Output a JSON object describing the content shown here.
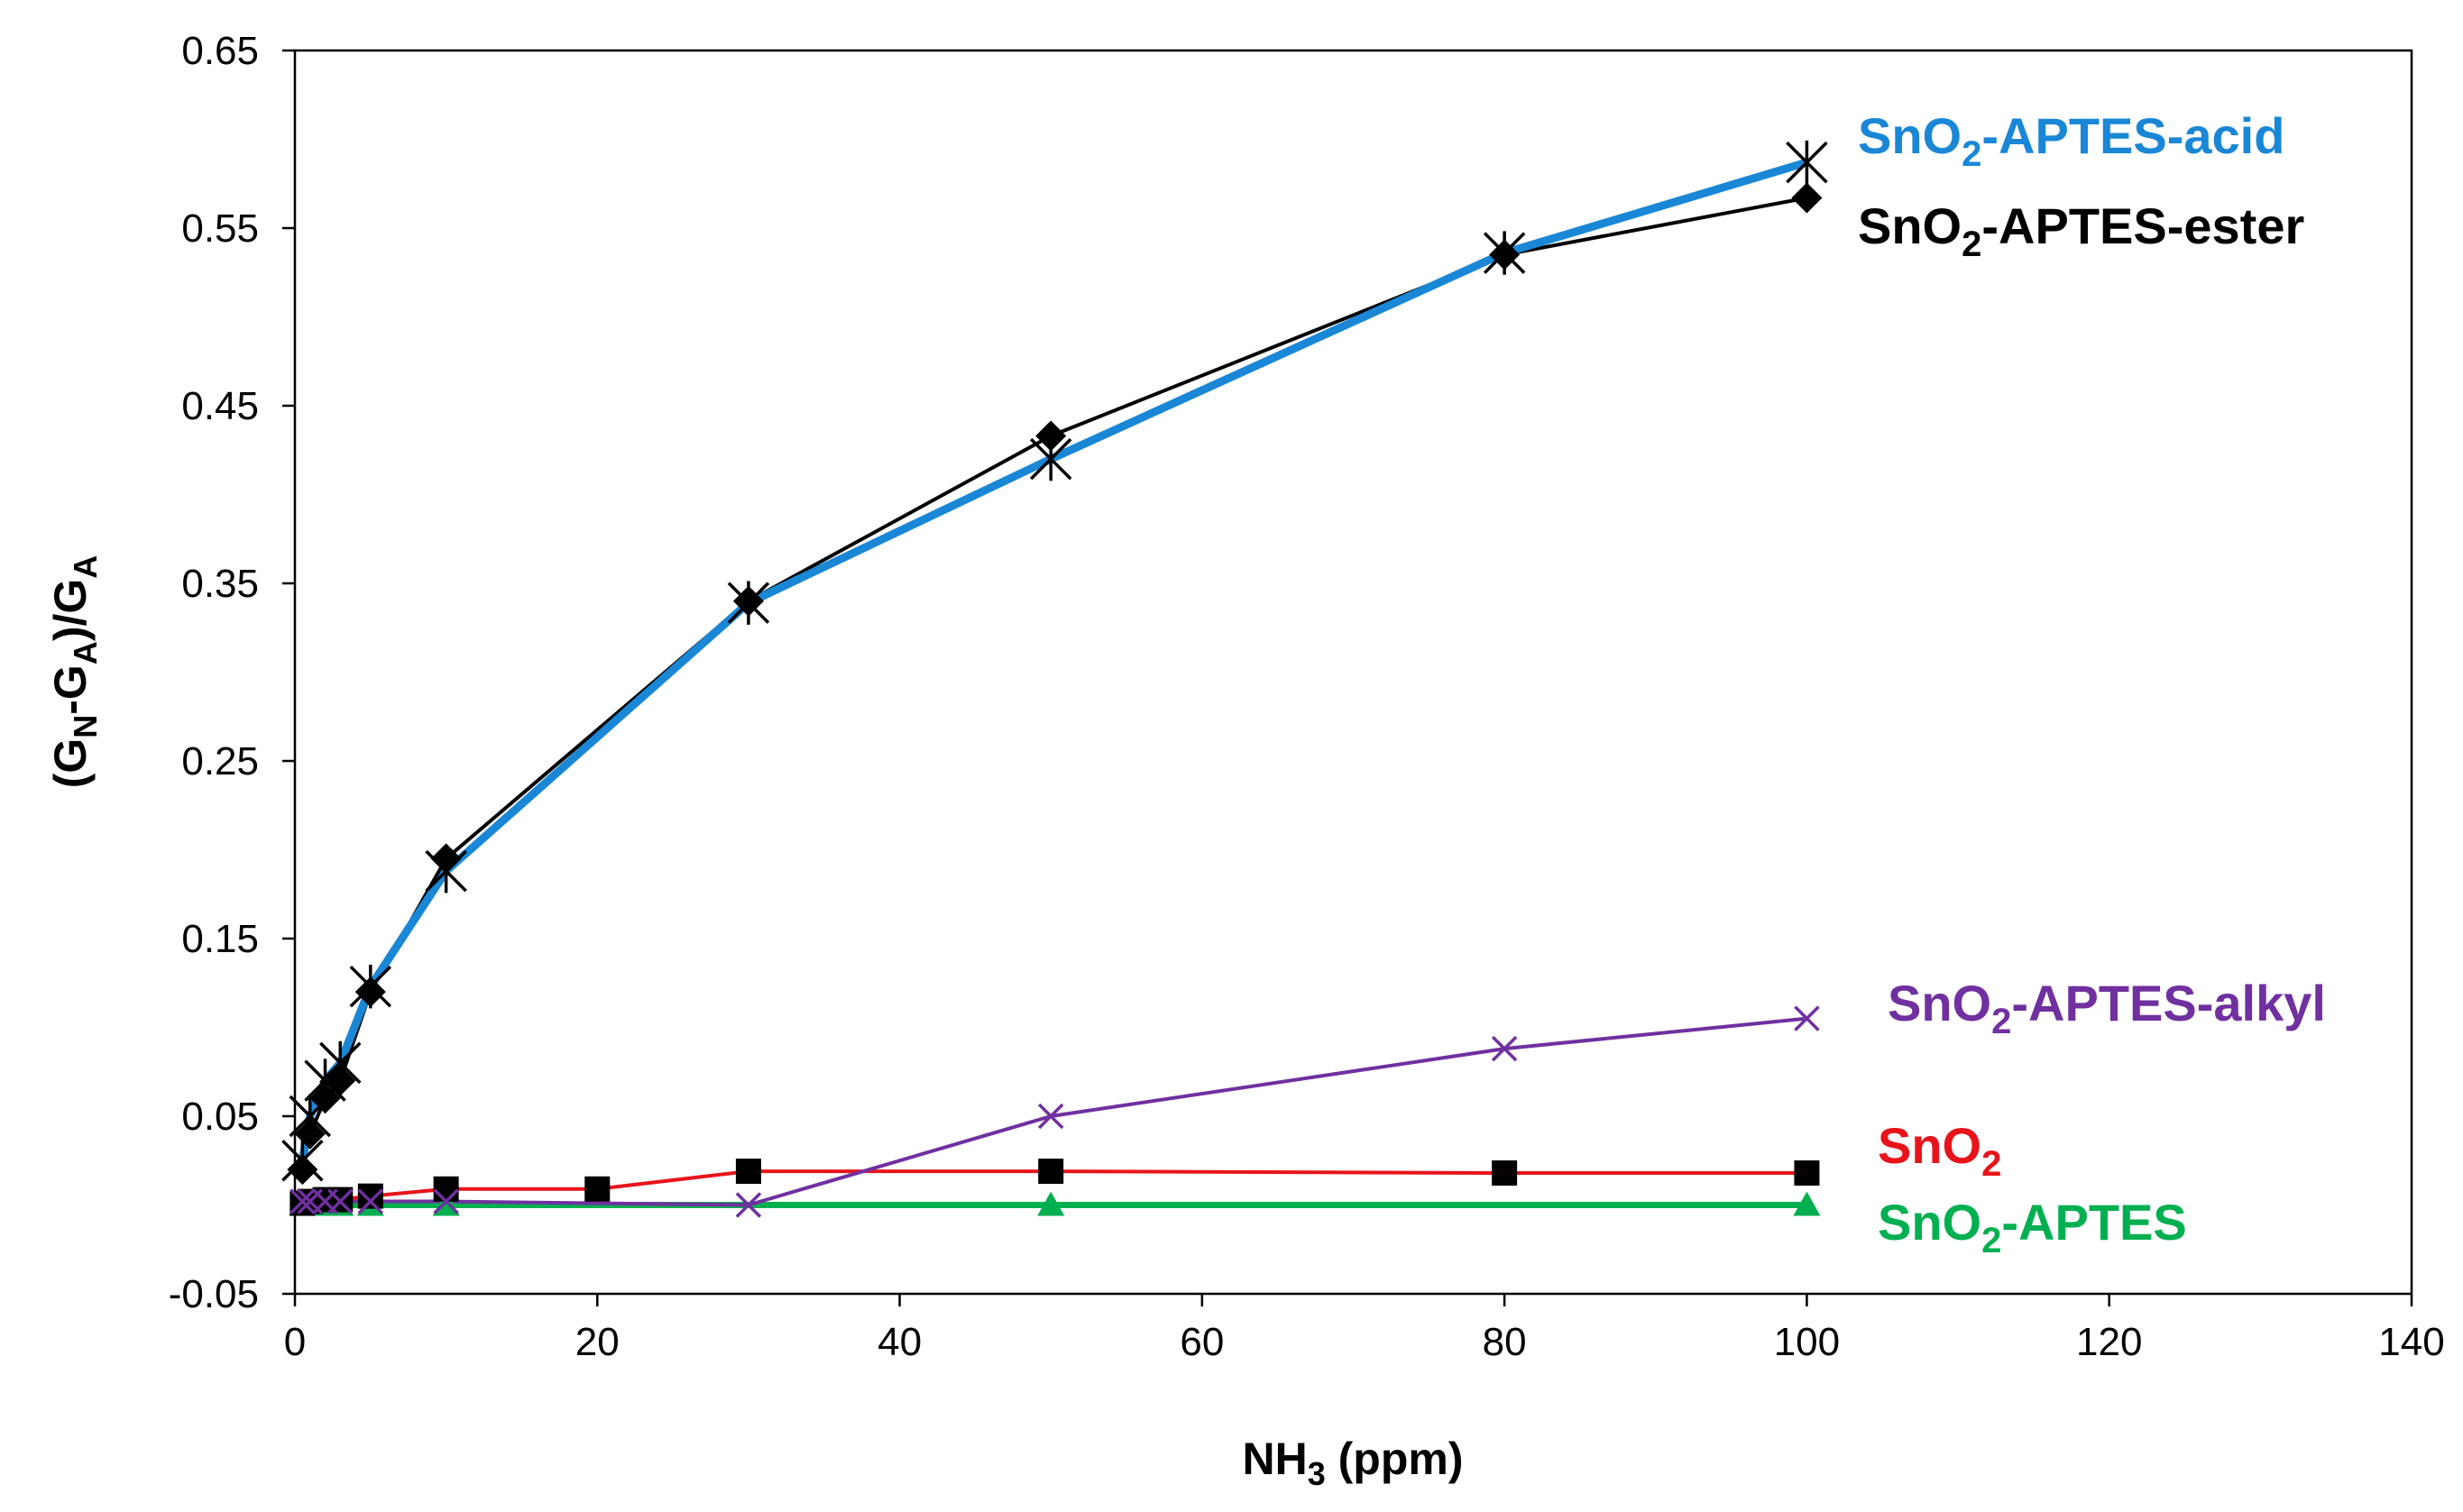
{
  "chart_data": {
    "type": "line",
    "title": "",
    "xlabel": {
      "main": "NH",
      "sub": "3",
      "rest": " (ppm)"
    },
    "ylabel": {
      "open": "(G",
      "sub1": "N",
      "mid": "-G",
      "sub2": "A",
      "close": ")/G",
      "sub3": "A"
    },
    "xlim": [
      0,
      140
    ],
    "ylim": [
      -0.05,
      0.65
    ],
    "x_ticks": [
      0,
      20,
      40,
      60,
      80,
      100,
      120,
      140
    ],
    "x_tick_labels": [
      "0",
      "20",
      "40",
      "60",
      "80",
      "100",
      "120",
      "140"
    ],
    "y_ticks": [
      -0.05,
      0.05,
      0.15,
      0.25,
      0.35,
      0.45,
      0.55,
      0.65
    ],
    "y_tick_labels": [
      "-0.05",
      "0.05",
      "0.15",
      "0.25",
      "0.35",
      "0.45",
      "0.55",
      "0.65"
    ],
    "grid": false,
    "legend": "inline-right",
    "series": [
      {
        "key": "snO2-aptes-ester",
        "name": "SnO2-APTES-ester",
        "label_main": "SnO",
        "label_sub": "2",
        "label_rest": "-APTES-ester",
        "line_color": "#000000",
        "label_color": "#000000",
        "marker": "diamond",
        "marker_color": "#000000",
        "x": [
          0.5,
          1,
          2,
          3,
          5,
          10,
          30,
          50,
          80,
          100
        ],
        "y": [
          0.02,
          0.04,
          0.06,
          0.07,
          0.12,
          0.195,
          0.34,
          0.433,
          0.535,
          0.567
        ]
      },
      {
        "key": "snO2-aptes-acid",
        "name": "SnO2-APTES-acid",
        "label_main": "SnO",
        "label_sub": "2",
        "label_rest": "-APTES-acid",
        "line_color": "#1a87d6",
        "label_color": "#1a87d6",
        "marker": "asterisk",
        "marker_color": "#000000",
        "x": [
          0.5,
          1,
          2,
          3,
          5,
          10,
          30,
          50,
          80,
          100
        ],
        "y": [
          0.025,
          0.05,
          0.07,
          0.08,
          0.123,
          0.188,
          0.339,
          0.42,
          0.536,
          0.587
        ]
      },
      {
        "key": "snO2-aptes-alkyl",
        "name": "SnO2-APTES-alkyl",
        "label_main": "SnO",
        "label_sub": "2",
        "label_rest": "-APTES-alkyl",
        "line_color": "#7030a0",
        "label_color": "#7030a0",
        "marker": "x",
        "marker_color": "#7030a0",
        "x": [
          0.5,
          1,
          2,
          3,
          5,
          10,
          30,
          50,
          80,
          100
        ],
        "y": [
          0.002,
          0.002,
          0.002,
          0.002,
          0.002,
          0.002,
          0.0,
          0.05,
          0.088,
          0.105
        ]
      },
      {
        "key": "snO2",
        "name": "SnO2",
        "label_main": "SnO",
        "label_sub": "2",
        "label_rest": "",
        "line_color": "#e8141b",
        "label_color": "#e8141b",
        "marker": "square",
        "marker_color": "#000000",
        "x": [
          0.5,
          1,
          2,
          3,
          5,
          10,
          20,
          30,
          50,
          80,
          100
        ],
        "y": [
          0.001,
          0.002,
          0.003,
          0.003,
          0.005,
          0.009,
          0.009,
          0.019,
          0.019,
          0.018,
          0.018
        ]
      },
      {
        "key": "snO2-aptes",
        "name": "SnO2-APTES",
        "label_main": "SnO",
        "label_sub": "2",
        "label_rest": "-APTES",
        "line_color": "#00b050",
        "label_color": "#00b050",
        "marker": "triangle",
        "marker_color": "#00b050",
        "x": [
          0.5,
          1,
          2,
          3,
          5,
          10,
          50,
          100
        ],
        "y": [
          0.0,
          0.0,
          0.0,
          0.0,
          0.0,
          0.0,
          0.0,
          0.0
        ]
      }
    ]
  }
}
